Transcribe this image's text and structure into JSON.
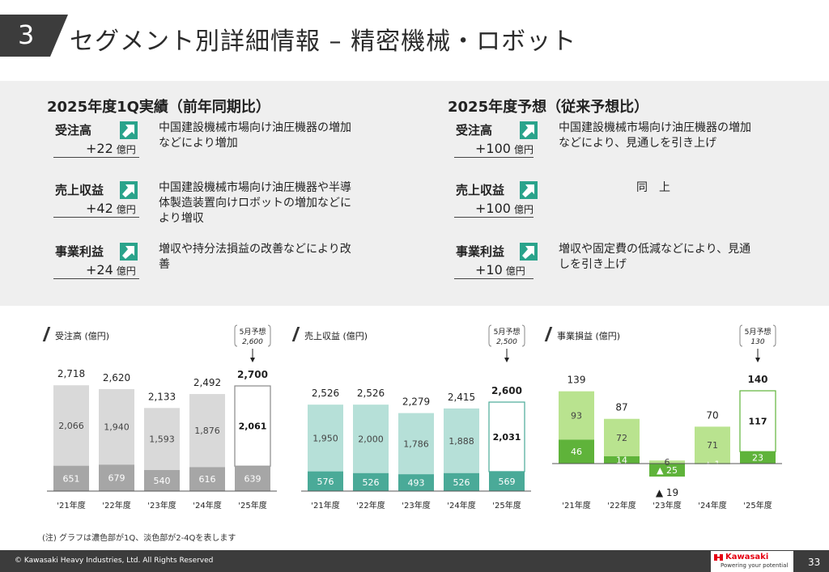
{
  "header": {
    "section_number": "3",
    "title": "セグメント別詳細情報 – 精密機械・ロボット"
  },
  "summary": {
    "left": {
      "title": "2025年度1Q実績（前年同期比）",
      "items": [
        {
          "label": "受注高",
          "value": "+22",
          "unit": "億円",
          "desc": [
            "中国建設機械市場向け油圧機器の増加",
            "などにより増加"
          ]
        },
        {
          "label": "売上収益",
          "value": "+42",
          "unit": "億円",
          "desc": [
            "中国建設機械市場向け油圧機器や半導",
            "体製造装置向けロボットの増加などに",
            "より増収"
          ]
        },
        {
          "label": "事業利益",
          "value": "+24",
          "unit": "億円",
          "desc": [
            "増収や持分法損益の改善などにより改",
            "善"
          ]
        }
      ]
    },
    "right": {
      "title": "2025年度予想（従来予想比）",
      "items": [
        {
          "label": "受注高",
          "value": "+100",
          "unit": "億円",
          "desc": [
            "中国建設機械市場向け油圧機器の増加",
            "などにより、見通しを引き上げ"
          ]
        },
        {
          "label": "売上収益",
          "value": "+100",
          "unit": "億円",
          "desc": [
            "同　上"
          ]
        },
        {
          "label": "事業利益",
          "value": "+10",
          "unit": "億円",
          "desc": [
            "増収や固定費の低減などにより、見通",
            "しを引き上げ"
          ]
        }
      ]
    }
  },
  "chart_data": [
    {
      "type": "bar",
      "title": "受注高 (億円)",
      "categories": [
        "'21年度",
        "'22年度",
        "'23年度",
        "'24年度",
        "'25年度"
      ],
      "series": [
        {
          "name": "1Q",
          "values": [
            651,
            679,
            540,
            616,
            639
          ],
          "labels": [
            "651",
            "679",
            "540",
            "616",
            "639"
          ]
        },
        {
          "name": "2-4Q",
          "values": [
            2066,
            1940,
            1593,
            1876,
            2061
          ],
          "labels": [
            "2,066",
            "1,940",
            "1,593",
            "1,876",
            "2,061"
          ]
        }
      ],
      "totals": [
        "2,718",
        "2,620",
        "2,133",
        "2,492",
        "2,700"
      ],
      "total_values": [
        2718,
        2620,
        2133,
        2492,
        2700
      ],
      "forecast": {
        "label": "5月予想",
        "value": "2,600"
      },
      "colors": {
        "dark": "#a6a6a6",
        "light": "#d9d9d9",
        "forecast_border": "#888888"
      },
      "ylim": [
        0,
        2800
      ]
    },
    {
      "type": "bar",
      "title": "売上収益 (億円)",
      "categories": [
        "'21年度",
        "'22年度",
        "'23年度",
        "'24年度",
        "'25年度"
      ],
      "series": [
        {
          "name": "1Q",
          "values": [
            576,
            526,
            493,
            526,
            569
          ],
          "labels": [
            "576",
            "526",
            "493",
            "526",
            "569"
          ]
        },
        {
          "name": "2-4Q",
          "values": [
            1950,
            2000,
            1786,
            1888,
            2031
          ],
          "labels": [
            "1,950",
            "2,000",
            "1,786",
            "1,888",
            "2,031"
          ]
        }
      ],
      "totals": [
        "2,526",
        "2,526",
        "2,279",
        "2,415",
        "2,600"
      ],
      "total_values": [
        2526,
        2526,
        2279,
        2415,
        2600
      ],
      "forecast": {
        "label": "5月予想",
        "value": "2,500"
      },
      "colors": {
        "dark": "#4aaa98",
        "light": "#b6e0d8",
        "forecast_border": "#4aaa98"
      },
      "ylim": [
        0,
        2800
      ]
    },
    {
      "type": "bar",
      "title": "事業損益 (億円)",
      "categories": [
        "'21年度",
        "'22年度",
        "'23年度",
        "'24年度",
        "'25年度"
      ],
      "series": [
        {
          "name": "1Q",
          "values": [
            46,
            14,
            -25,
            -1,
            23
          ],
          "labels": [
            "46",
            "14",
            "▲ 25",
            "▲ 1",
            "23"
          ]
        },
        {
          "name": "2-4Q",
          "values": [
            93,
            72,
            6,
            71,
            117
          ],
          "labels": [
            "93",
            "72",
            "6",
            "71",
            "117"
          ]
        }
      ],
      "totals": [
        "139",
        "87",
        "▲ 19",
        "70",
        "140"
      ],
      "total_values": [
        139,
        87,
        -19,
        70,
        140
      ],
      "forecast": {
        "label": "5月予想",
        "value": "130"
      },
      "colors": {
        "dark": "#5fb33a",
        "light": "#b9e38f",
        "forecast_border": "#5fb33a"
      },
      "ylim": [
        -40,
        160
      ]
    }
  ],
  "note": "(注) グラフは濃色部が1Q、淡色部が2-4Qを表します",
  "footer": {
    "copyright": "© Kawasaki Heavy Industries, Ltd. All Rights Reserved",
    "logo_text": "Kawasaki",
    "logo_tagline": "Powering your potential",
    "page_number": "33"
  }
}
